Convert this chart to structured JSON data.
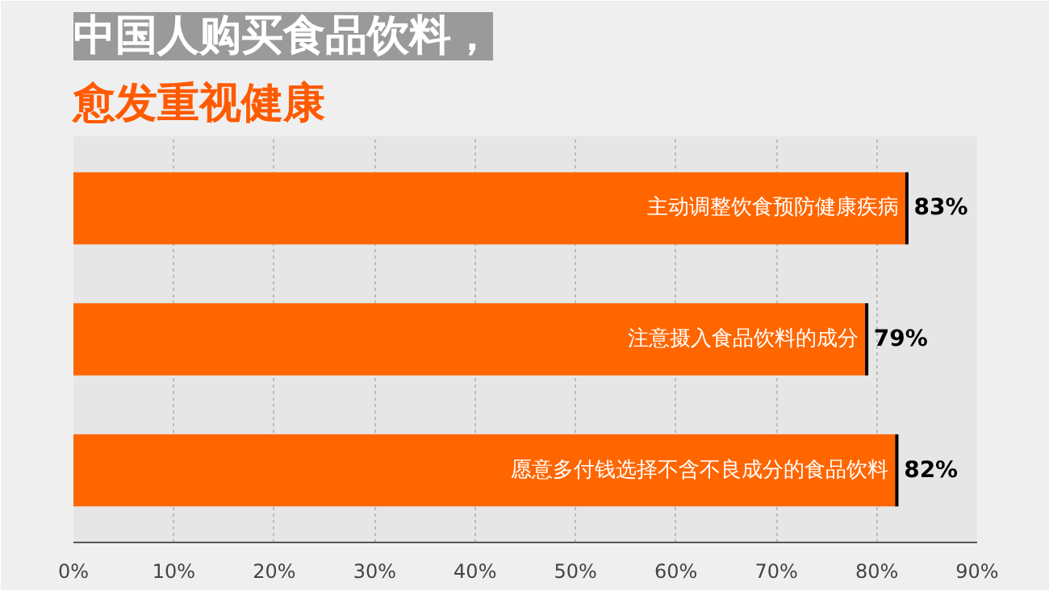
{
  "chart_data": {
    "type": "bar",
    "orientation": "horizontal",
    "title": "中国人购买食品饮料，",
    "subtitle": "愈发重视健康",
    "categories": [
      "主动调整饮食预防健康疾病",
      "注意摄入食品饮料的成分",
      "愿意多付钱选择不含不良成分的食品饮料"
    ],
    "values": [
      83,
      79,
      82
    ],
    "color": "#ff6600",
    "value_labels": [
      "83%",
      "79%",
      "82%"
    ],
    "xlim": [
      0,
      90
    ],
    "xticks": [
      {
        "value": 0,
        "label": "0%"
      },
      {
        "value": 10,
        "label": "10%"
      },
      {
        "value": 20,
        "label": "20%"
      },
      {
        "value": 30,
        "label": "30%"
      },
      {
        "value": 40,
        "label": "40%"
      },
      {
        "value": 50,
        "label": "50%"
      },
      {
        "value": 60,
        "label": "60%"
      },
      {
        "value": 70,
        "label": "70%"
      },
      {
        "value": 80,
        "label": "80%"
      },
      {
        "value": 90,
        "label": "90%"
      }
    ],
    "grid": "x"
  }
}
